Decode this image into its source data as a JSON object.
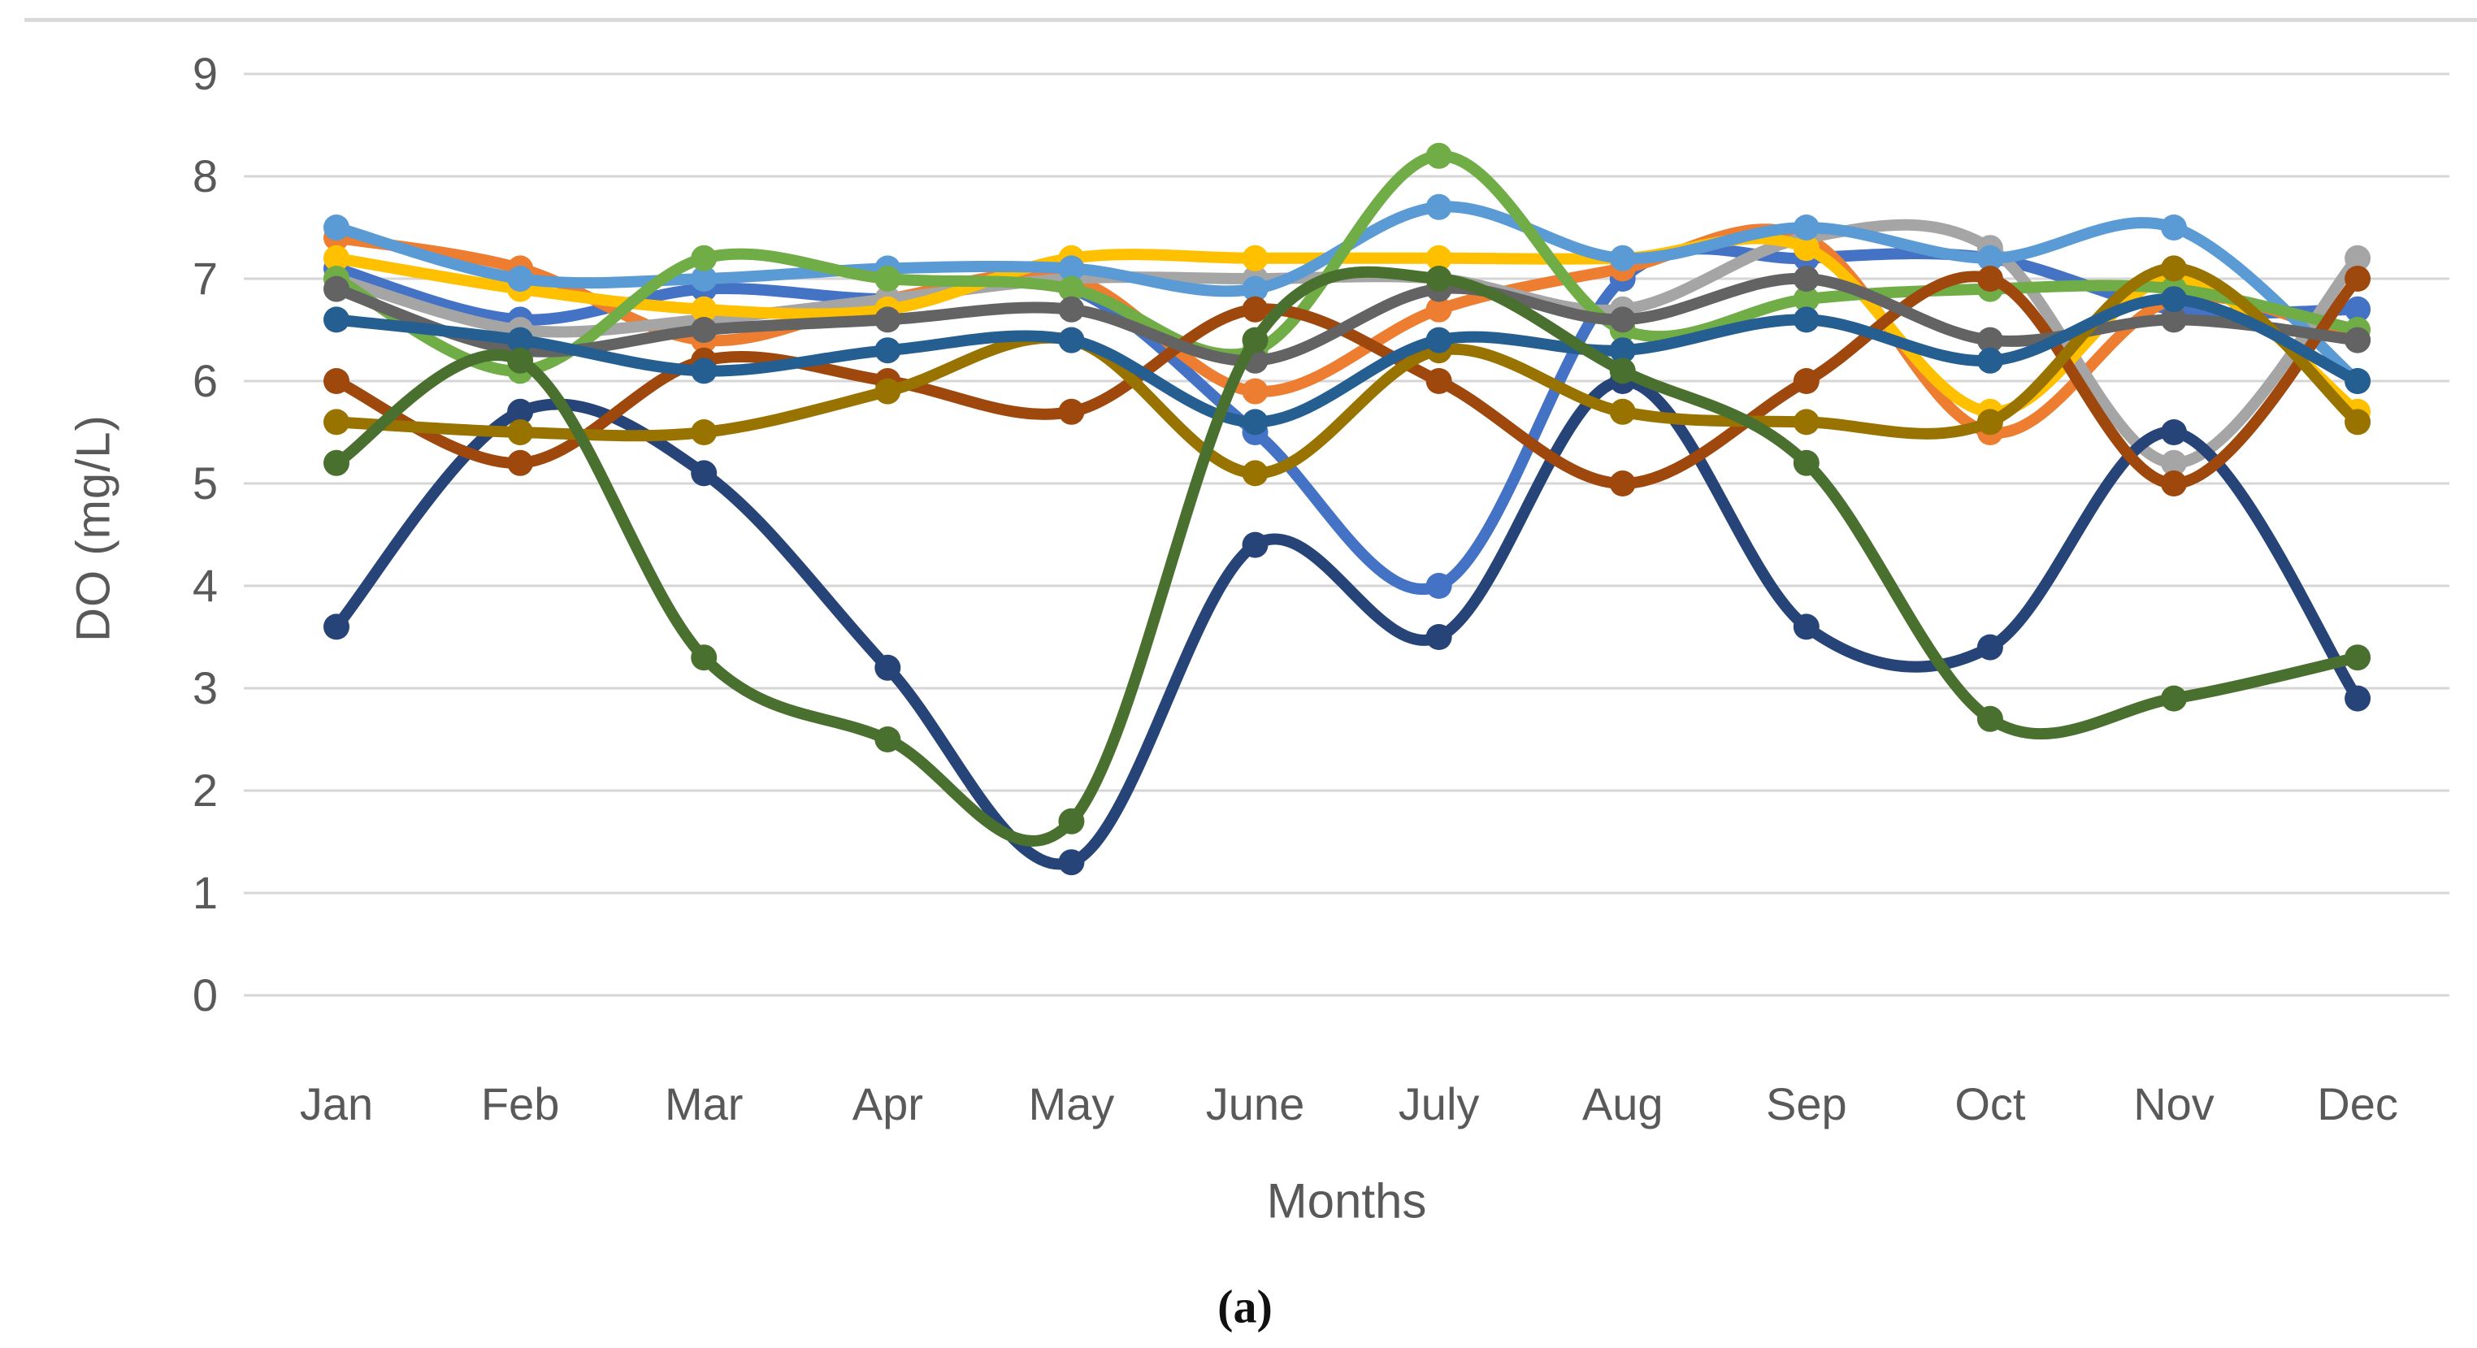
{
  "figure": {
    "caption": "(a)"
  },
  "chart_data": {
    "type": "line",
    "title": "",
    "xlabel": "Months",
    "ylabel": "DO (mg/L)",
    "ylim": [
      0,
      9
    ],
    "yticks": [
      0,
      1,
      2,
      3,
      4,
      5,
      6,
      7,
      8,
      9
    ],
    "categories": [
      "Jan",
      "Feb",
      "Mar",
      "Apr",
      "May",
      "June",
      "July",
      "Aug",
      "Sep",
      "Oct",
      "Nov",
      "Dec"
    ],
    "grid": "horizontal-only",
    "gridline_color": "#d6d6d6",
    "axis_text_color": "#595959",
    "legend": "none",
    "line_style": "smooth-with-circle-markers",
    "series": [
      {
        "name": "series-blue",
        "color": "#4472C4",
        "values": [
          7.1,
          6.6,
          6.9,
          6.8,
          6.9,
          5.5,
          4.0,
          7.0,
          7.2,
          7.2,
          6.7,
          6.7
        ]
      },
      {
        "name": "series-orange",
        "color": "#ED7D31",
        "values": [
          7.4,
          7.1,
          6.4,
          6.8,
          7.0,
          5.9,
          6.7,
          7.1,
          7.4,
          5.5,
          6.8,
          6.4
        ]
      },
      {
        "name": "series-gray",
        "color": "#A5A5A5",
        "values": [
          7.0,
          6.5,
          6.6,
          6.8,
          7.0,
          7.0,
          7.0,
          6.7,
          7.4,
          7.3,
          5.2,
          7.2
        ]
      },
      {
        "name": "series-yellow",
        "color": "#FFC000",
        "values": [
          7.2,
          6.9,
          6.7,
          6.7,
          7.2,
          7.2,
          7.2,
          7.2,
          7.3,
          5.7,
          7.0,
          5.7
        ]
      },
      {
        "name": "series-sky-blue",
        "color": "#5B9BD5",
        "values": [
          7.5,
          7.0,
          7.0,
          7.1,
          7.1,
          6.9,
          7.7,
          7.2,
          7.5,
          7.2,
          7.5,
          6.0
        ]
      },
      {
        "name": "series-green",
        "color": "#70AD47",
        "values": [
          7.0,
          6.1,
          7.2,
          7.0,
          6.9,
          6.3,
          8.2,
          6.5,
          6.8,
          6.9,
          6.9,
          6.5
        ]
      },
      {
        "name": "series-navy",
        "color": "#264478",
        "values": [
          3.6,
          5.7,
          5.1,
          3.2,
          1.3,
          4.4,
          3.5,
          6.0,
          3.6,
          3.4,
          5.5,
          2.9
        ]
      },
      {
        "name": "series-dark-red",
        "color": "#9E480E",
        "values": [
          6.0,
          5.2,
          6.2,
          6.0,
          5.7,
          6.7,
          6.0,
          5.0,
          6.0,
          7.0,
          5.0,
          7.0
        ]
      },
      {
        "name": "series-dark-gray",
        "color": "#636363",
        "values": [
          6.9,
          6.3,
          6.5,
          6.6,
          6.7,
          6.2,
          6.9,
          6.6,
          7.0,
          6.4,
          6.6,
          6.4
        ]
      },
      {
        "name": "series-olive",
        "color": "#997300",
        "values": [
          5.6,
          5.5,
          5.5,
          5.9,
          6.4,
          5.1,
          6.3,
          5.7,
          5.6,
          5.6,
          7.1,
          5.6
        ]
      },
      {
        "name": "series-steel-blue",
        "color": "#255E91",
        "values": [
          6.6,
          6.4,
          6.1,
          6.3,
          6.4,
          5.6,
          6.4,
          6.3,
          6.6,
          6.2,
          6.8,
          6.0
        ]
      },
      {
        "name": "series-dark-green",
        "color": "#4A7030",
        "values": [
          5.2,
          6.2,
          3.3,
          2.5,
          1.7,
          6.4,
          7.0,
          6.1,
          5.2,
          2.7,
          2.9,
          3.3
        ]
      }
    ]
  }
}
